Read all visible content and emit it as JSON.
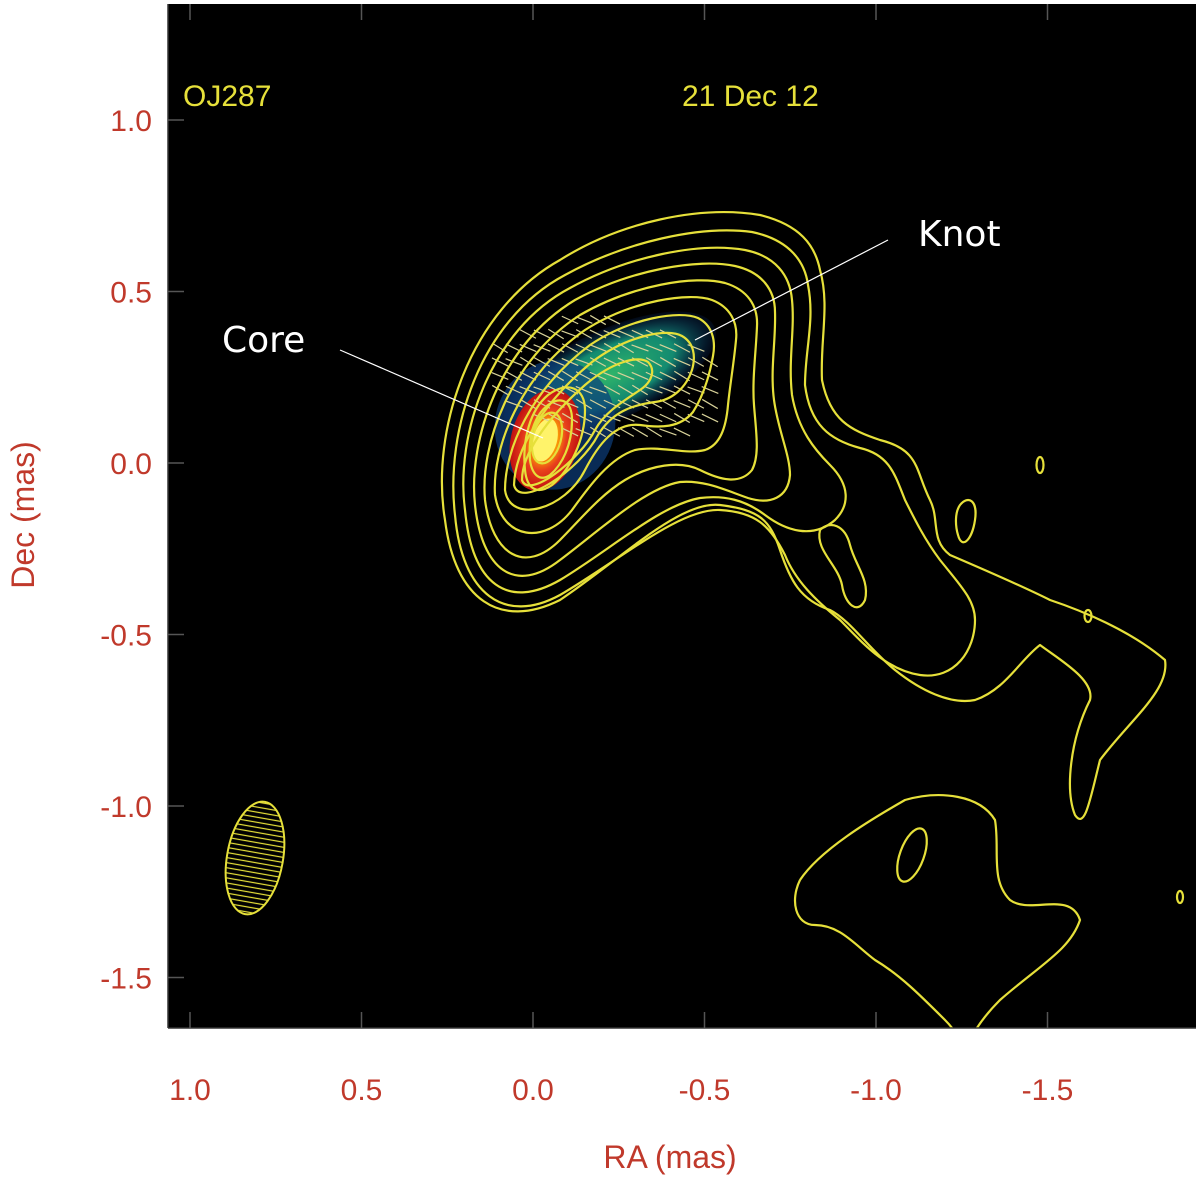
{
  "chart_data": {
    "type": "contour",
    "source_label": "OJ287",
    "date_label": "21 Dec 12",
    "xlabel": "RA (mas)",
    "ylabel": "Dec (mas)",
    "xlim": [
      1.05,
      -1.93
    ],
    "ylim": [
      -1.65,
      1.35
    ],
    "x_inverted": true,
    "x_ticks": [
      1.0,
      0.5,
      0.0,
      -0.5,
      -1.0,
      -1.5
    ],
    "x_tick_labels": [
      "1.0",
      "0.5",
      "0.0",
      "-0.5",
      "-1.0",
      "-1.5"
    ],
    "y_ticks": [
      1.0,
      0.5,
      0.0,
      -0.5,
      -1.0,
      -1.5
    ],
    "y_tick_labels": [
      "1.0",
      "0.5",
      "0.0",
      "-0.5",
      "-1.0",
      "-1.5"
    ],
    "annotations": [
      {
        "text": "Core",
        "points_to": {
          "x": -0.03,
          "y": 0.04
        }
      },
      {
        "text": "Knot",
        "points_to": {
          "x": -0.45,
          "y": 0.37
        }
      }
    ],
    "components": [
      {
        "name": "Core",
        "x": -0.03,
        "y": 0.04
      },
      {
        "name": "Knot",
        "x": -0.45,
        "y": 0.37
      }
    ],
    "beam": {
      "x": 0.82,
      "y": -1.15
    },
    "background": "black",
    "grid": false
  },
  "colors": {
    "axis_text": "#c0392b",
    "contour": "#e6e03a",
    "corner_text": "#e6e03a",
    "annotation_text": "#ffffff",
    "plot_background": "#000000"
  }
}
